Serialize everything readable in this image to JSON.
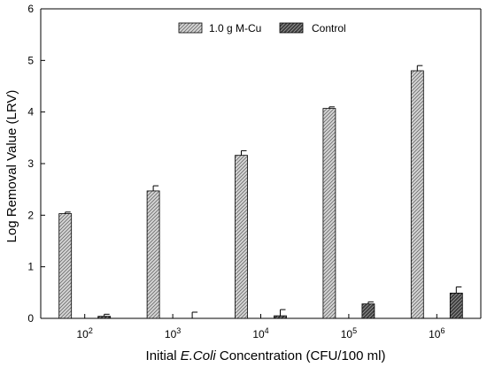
{
  "chart_data": {
    "type": "bar",
    "categories": [
      "10",
      "10",
      "10",
      "10",
      "10"
    ],
    "category_exponents": [
      "2",
      "3",
      "4",
      "5",
      "6"
    ],
    "series": [
      {
        "name": "1.0 g M-Cu",
        "values": [
          2.03,
          2.47,
          3.16,
          4.07,
          4.8
        ],
        "errors": [
          0.03,
          0.1,
          0.09,
          0.03,
          0.1
        ],
        "pattern": "light-gray-diagonal-hatch"
      },
      {
        "name": "Control",
        "values": [
          0.04,
          0.0,
          0.05,
          0.28,
          0.49
        ],
        "errors": [
          0.04,
          0.12,
          0.12,
          0.04,
          0.12
        ],
        "pattern": "dark-gray-diagonal-hatch"
      }
    ],
    "xlabel_prefix": "Initial ",
    "xlabel_italic": "E.Coli",
    "xlabel_suffix": " Concentration (CFU/100 ml)",
    "ylabel": "Log Removal Value (LRV)",
    "ylim": [
      0,
      6
    ],
    "yticks": [
      "0",
      "1",
      "2",
      "3",
      "4",
      "5",
      "6"
    ],
    "legend_position": "top-center",
    "grid": false,
    "colors": {
      "series1_fill": "#c8c8c8",
      "series2_fill": "#555555",
      "axis": "#000000"
    }
  }
}
